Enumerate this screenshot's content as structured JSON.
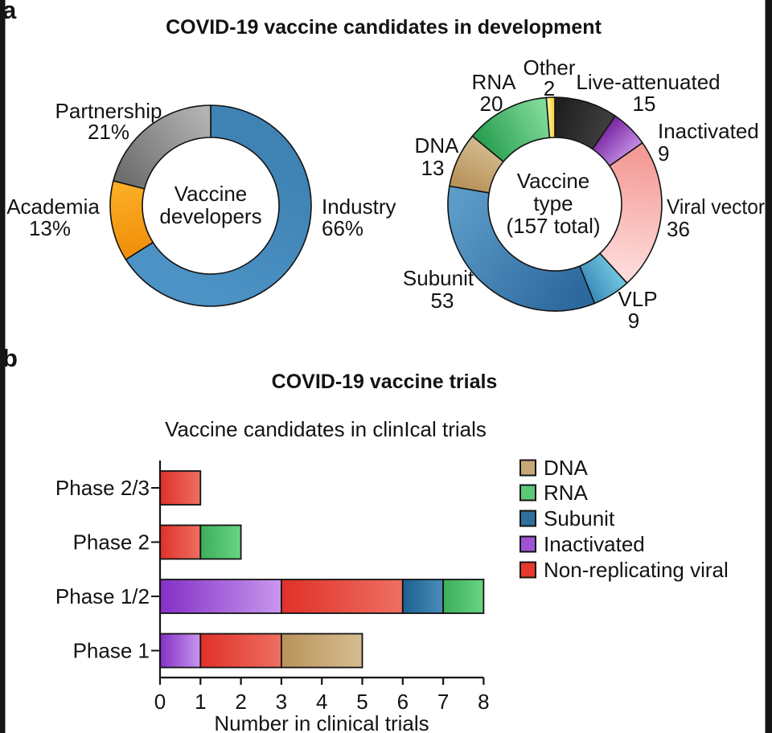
{
  "page_background": "#ffffff",
  "border_bar_color": "#161616",
  "panel_a": {
    "label": "a",
    "title": "COVID-19 vaccine candidates in development"
  },
  "panel_b": {
    "label": "b",
    "title": "COVID-19 vaccine trials"
  },
  "chart_data": [
    {
      "type": "pie",
      "name": "vaccine-developers",
      "center_label": [
        "Vaccine",
        "developers"
      ],
      "segments": [
        {
          "label": "Industry",
          "value": 66,
          "value_label": "66%",
          "color": [
            "#3f82b4",
            "#4c92c4"
          ]
        },
        {
          "label": "Academia",
          "value": 13,
          "value_label": "13%",
          "color": [
            "#f1900a",
            "#fbae25"
          ]
        },
        {
          "label": "Partnership",
          "value": 21,
          "value_label": "21%",
          "color": [
            "#6e6e6e",
            "#b2b2b2"
          ]
        }
      ]
    },
    {
      "type": "pie",
      "name": "vaccine-type",
      "center_label": [
        "Vaccine",
        "type",
        "(157 total)"
      ],
      "total": 157,
      "segments": [
        {
          "label": "Live-attenuated",
          "value": 15,
          "value_label": "15",
          "color": [
            "#1f1f1f",
            "#3d3d3d"
          ]
        },
        {
          "label": "Inactivated",
          "value": 9,
          "value_label": "9",
          "color": [
            "#7e2da6",
            "#bd85de"
          ]
        },
        {
          "label": "Viral vector",
          "value": 36,
          "value_label": "36",
          "color": [
            "#f49b97",
            "#fdd9d7"
          ]
        },
        {
          "label": "VLP",
          "value": 9,
          "value_label": "9",
          "color": [
            "#6fc2de",
            "#3f8fbc"
          ]
        },
        {
          "label": "Subunit",
          "value": 53,
          "value_label": "53",
          "color": [
            "#2d689e",
            "#5b9bc8"
          ]
        },
        {
          "label": "DNA",
          "value": 13,
          "value_label": "13",
          "color": [
            "#b8935a",
            "#d2b78b"
          ]
        },
        {
          "label": "RNA",
          "value": 20,
          "value_label": "20",
          "color": [
            "#2da153",
            "#7fd999"
          ]
        },
        {
          "label": "Other",
          "value": 2,
          "value_label": "2",
          "color": [
            "#fdf0a0",
            "#f5d02e"
          ]
        }
      ]
    },
    {
      "type": "bar",
      "title": "Vaccine candidates in clinIcal trials",
      "xlabel": "Number in clinical trials",
      "xlim": [
        0,
        8
      ],
      "xticks": [
        0,
        1,
        2,
        3,
        4,
        5,
        6,
        7,
        8
      ],
      "categories": [
        "Phase 2/3",
        "Phase 2",
        "Phase 1/2",
        "Phase 1"
      ],
      "rows": [
        [
          {
            "series": "Non-replicating viral",
            "value": 1
          }
        ],
        [
          {
            "series": "Non-replicating viral",
            "value": 1
          },
          {
            "series": "RNA",
            "value": 1
          }
        ],
        [
          {
            "series": "Inactivated",
            "value": 3
          },
          {
            "series": "Non-replicating viral",
            "value": 3
          },
          {
            "series": "Subunit",
            "value": 1
          },
          {
            "series": "RNA",
            "value": 1
          }
        ],
        [
          {
            "series": "Inactivated",
            "value": 1
          },
          {
            "series": "Non-replicating viral",
            "value": 2
          },
          {
            "series": "DNA",
            "value": 2
          }
        ]
      ],
      "legend": [
        {
          "label": "DNA",
          "color": [
            "#b8935a",
            "#d6bd92"
          ],
          "swatch": "#c8a876"
        },
        {
          "label": "RNA",
          "color": [
            "#3cae5a",
            "#68d584"
          ],
          "swatch": "#5cc878"
        },
        {
          "label": "Subunit",
          "color": [
            "#1c6191",
            "#4a8cba"
          ],
          "swatch": "#2f6f9b"
        },
        {
          "label": "Inactivated",
          "color": [
            "#8430c6",
            "#c897ee"
          ],
          "swatch": "#9d53d3"
        },
        {
          "label": "Non-replicating viral",
          "color": [
            "#e03129",
            "#ee6f61"
          ],
          "swatch": "#e8392e"
        }
      ]
    }
  ]
}
